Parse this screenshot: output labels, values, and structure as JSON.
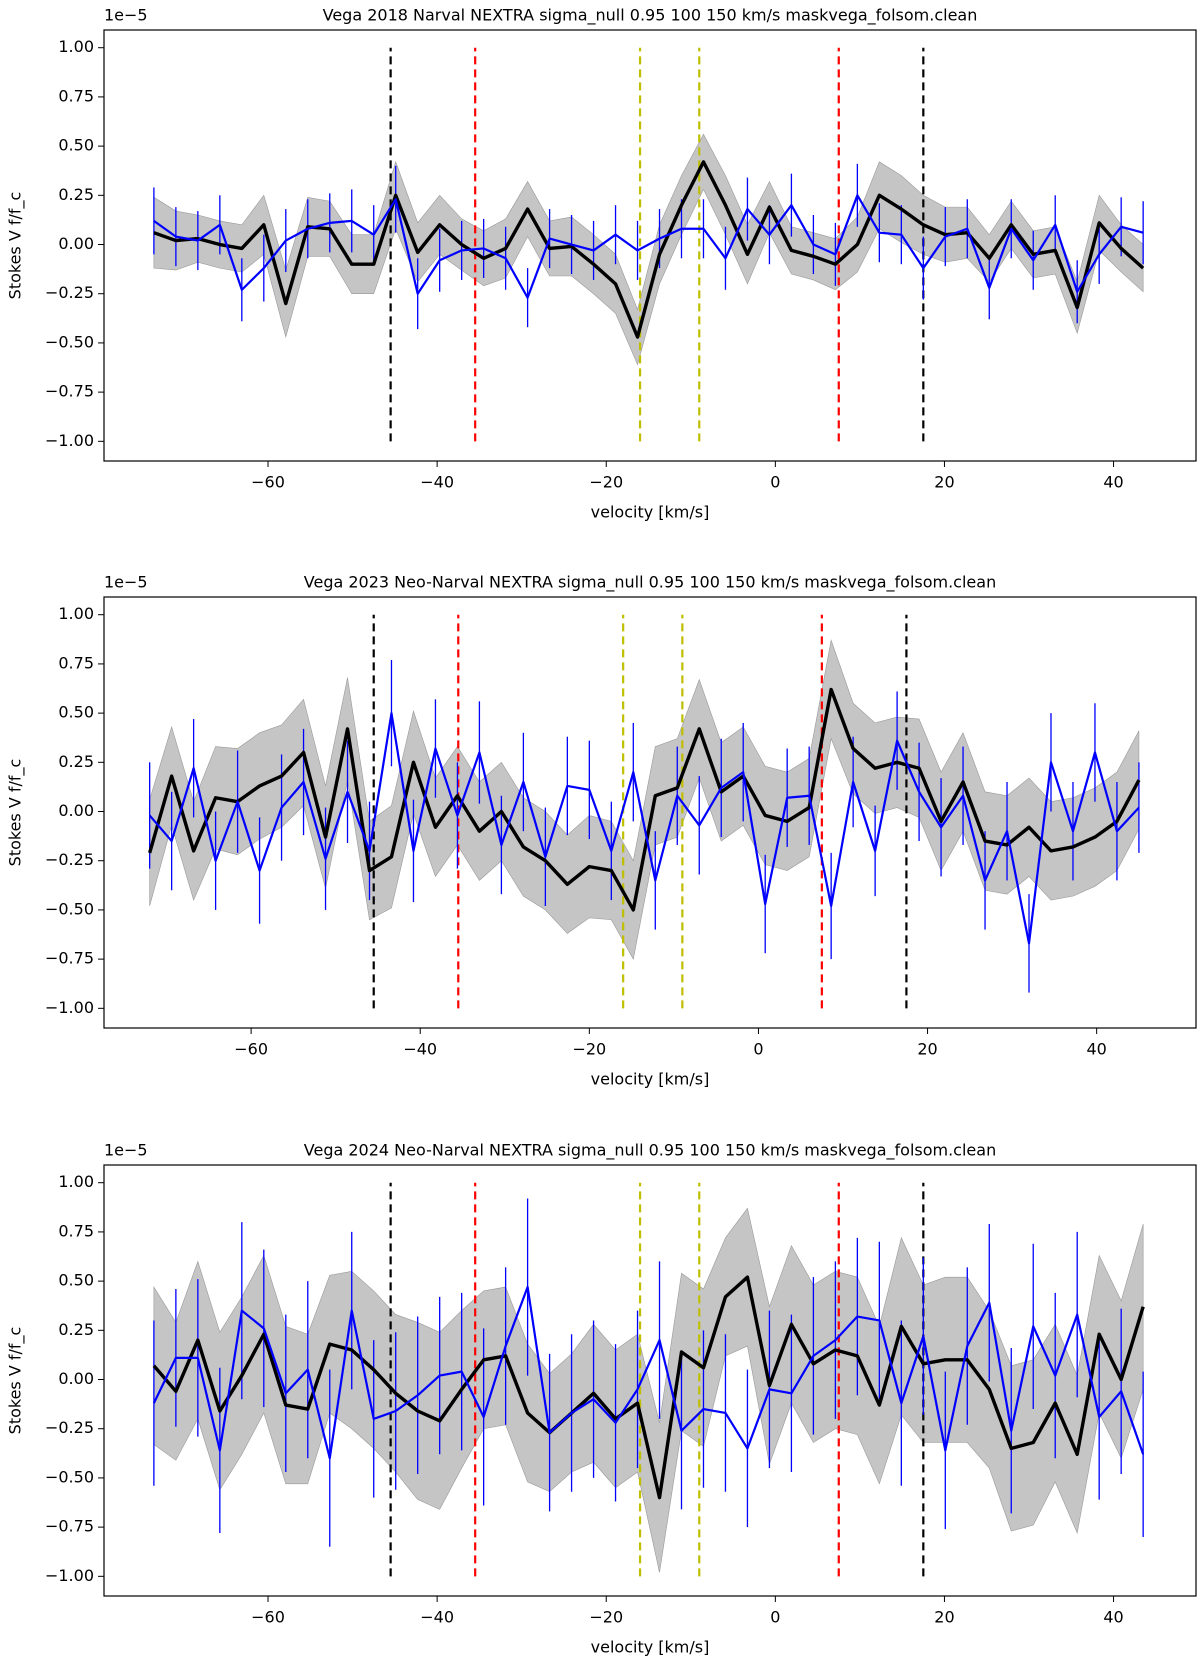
{
  "chart_data": [
    {
      "type": "line",
      "title": "Vega  2018  Narval  NEXTRA  sigma_null  0.95  100  150 km/s maskvega_folsom.clean",
      "x_label": "velocity [km/s]",
      "y_label": "Stokes V f/f_c",
      "offset_label": "1e−5",
      "xlim": [
        -79.4,
        49.75
      ],
      "ylim": [
        -1.1,
        1.09
      ],
      "xticks": [
        {
          "value": -60,
          "label": "−60"
        },
        {
          "value": -40,
          "label": "−40"
        },
        {
          "value": -20,
          "label": "−20"
        },
        0,
        20,
        40
      ],
      "yticks": [
        {
          "value": -1,
          "label": "−1.00"
        },
        {
          "value": -0.75,
          "label": "−0.75"
        },
        {
          "value": -0.5,
          "label": "−0.50"
        },
        {
          "value": -0.25,
          "label": "−0.25"
        },
        {
          "value": 0,
          "label": "0.00"
        },
        {
          "value": 0.25,
          "label": "0.25"
        },
        {
          "value": 0.5,
          "label": "0.50"
        },
        {
          "value": 0.75,
          "label": "0.75"
        },
        {
          "value": 1,
          "label": "1.00"
        }
      ],
      "x": [
        -73.5,
        -70.9,
        -68.3,
        -65.7,
        -63.1,
        -60.5,
        -57.9,
        -55.3,
        -52.7,
        -50.1,
        -47.5,
        -44.9,
        -42.3,
        -39.7,
        -37.1,
        -34.5,
        -31.9,
        -29.3,
        -26.7,
        -24.1,
        -21.5,
        -18.9,
        -16.3,
        -13.7,
        -11.1,
        -8.5,
        -5.9,
        -3.3,
        -0.7,
        1.9,
        4.5,
        7.1,
        9.7,
        12.3,
        14.9,
        17.5,
        20.1,
        22.7,
        25.3,
        27.9,
        30.5,
        33.1,
        35.7,
        38.3,
        40.9,
        43.5
      ],
      "series": [
        {
          "color": "#000000",
          "band_color": "#bbbbbb",
          "style": "band",
          "values": [
            0.06,
            0.02,
            0.03,
            0.0,
            -0.02,
            0.1,
            -0.3,
            0.09,
            0.08,
            -0.1,
            -0.1,
            0.25,
            -0.04,
            0.1,
            0.0,
            -0.07,
            -0.02,
            0.18,
            -0.02,
            -0.01,
            -0.1,
            -0.2,
            -0.47,
            -0.05,
            0.2,
            0.42,
            0.2,
            -0.05,
            0.19,
            -0.03,
            -0.06,
            -0.1,
            0.0,
            0.25,
            0.18,
            0.1,
            0.05,
            0.06,
            -0.07,
            0.1,
            -0.05,
            -0.03,
            -0.32,
            0.11,
            -0.02,
            -0.12
          ],
          "errors": [
            0.18,
            0.15,
            0.12,
            0.12,
            0.12,
            0.15,
            0.17,
            0.15,
            0.14,
            0.15,
            0.15,
            0.17,
            0.15,
            0.15,
            0.13,
            0.14,
            0.15,
            0.14,
            0.14,
            0.15,
            0.15,
            0.15,
            0.14,
            0.15,
            0.15,
            0.14,
            0.15,
            0.15,
            0.13,
            0.12,
            0.12,
            0.13,
            0.14,
            0.17,
            0.17,
            0.15,
            0.14,
            0.13,
            0.12,
            0.12,
            0.12,
            0.12,
            0.13,
            0.14,
            0.12,
            0.12
          ]
        },
        {
          "color": "#0000ff",
          "style": "errorbar",
          "values": [
            0.12,
            0.04,
            0.02,
            0.1,
            -0.23,
            -0.12,
            0.02,
            0.08,
            0.11,
            0.12,
            0.05,
            0.23,
            -0.25,
            -0.08,
            -0.03,
            -0.02,
            -0.07,
            -0.27,
            0.03,
            0.0,
            -0.03,
            0.05,
            -0.03,
            0.03,
            0.08,
            0.08,
            -0.07,
            0.18,
            0.05,
            0.2,
            0.0,
            -0.05,
            0.25,
            0.06,
            0.05,
            -0.12,
            0.04,
            0.08,
            -0.22,
            0.08,
            -0.08,
            0.1,
            -0.24,
            -0.05,
            0.09,
            0.06
          ],
          "errors": [
            0.17,
            0.15,
            0.15,
            0.15,
            0.16,
            0.17,
            0.16,
            0.15,
            0.15,
            0.16,
            0.15,
            0.17,
            0.18,
            0.16,
            0.15,
            0.15,
            0.16,
            0.15,
            0.15,
            0.15,
            0.15,
            0.15,
            0.15,
            0.15,
            0.15,
            0.15,
            0.16,
            0.16,
            0.15,
            0.16,
            0.15,
            0.16,
            0.16,
            0.15,
            0.15,
            0.16,
            0.15,
            0.15,
            0.16,
            0.15,
            0.15,
            0.15,
            0.16,
            0.15,
            0.15,
            0.16
          ]
        }
      ],
      "vlines": {
        "x": [
          -45.5,
          -35.5,
          -16,
          -9,
          7.5,
          17.5
        ],
        "colors": [
          "#000000",
          "#ff0000",
          "#bfbf00",
          "#bfbf00",
          "#ff0000",
          "#000000"
        ],
        "y_range": [
          -1,
          1
        ]
      }
    },
    {
      "type": "line",
      "title": "Vega  2023  Neo-Narval  NEXTRA  sigma_null  0.95  100  150 km/s maskvega_folsom.clean",
      "x_label": "velocity [km/s]",
      "y_label": "Stokes V f/f_c",
      "offset_label": "1e−5",
      "xlim": [
        -77.4,
        51.75
      ],
      "ylim": [
        -1.1,
        1.09
      ],
      "xticks": [
        {
          "value": -60,
          "label": "−60"
        },
        {
          "value": -40,
          "label": "−40"
        },
        {
          "value": -20,
          "label": "−20"
        },
        0,
        20,
        40
      ],
      "yticks": [
        {
          "value": -1,
          "label": "−1.00"
        },
        {
          "value": -0.75,
          "label": "−0.75"
        },
        {
          "value": -0.5,
          "label": "−0.50"
        },
        {
          "value": -0.25,
          "label": "−0.25"
        },
        {
          "value": 0,
          "label": "0.00"
        },
        {
          "value": 0.25,
          "label": "0.25"
        },
        {
          "value": 0.5,
          "label": "0.50"
        },
        {
          "value": 0.75,
          "label": "0.75"
        },
        {
          "value": 1,
          "label": "1.00"
        }
      ],
      "x": [
        -72,
        -69.4,
        -66.8,
        -64.2,
        -61.6,
        -59,
        -56.4,
        -53.8,
        -51.2,
        -48.6,
        -46,
        -43.4,
        -40.8,
        -38.2,
        -35.6,
        -33,
        -30.4,
        -27.8,
        -25.2,
        -22.6,
        -20,
        -17.4,
        -14.8,
        -12.2,
        -9.6,
        -7,
        -4.4,
        -1.8,
        0.8,
        3.4,
        6,
        8.6,
        11.2,
        13.8,
        16.4,
        19,
        21.6,
        24.2,
        26.8,
        29.4,
        32,
        34.6,
        37.2,
        39.8,
        42.4,
        45
      ],
      "series": [
        {
          "color": "#000000",
          "band_color": "#bbbbbb",
          "style": "band",
          "values": [
            -0.21,
            0.18,
            -0.2,
            0.07,
            0.05,
            0.13,
            0.18,
            0.3,
            -0.13,
            0.42,
            -0.3,
            -0.23,
            0.25,
            -0.08,
            0.08,
            -0.1,
            0.0,
            -0.18,
            -0.25,
            -0.37,
            -0.28,
            -0.3,
            -0.5,
            0.08,
            0.12,
            0.42,
            0.1,
            0.18,
            -0.02,
            -0.05,
            0.02,
            0.62,
            0.32,
            0.22,
            0.25,
            0.22,
            -0.05,
            0.15,
            -0.15,
            -0.17,
            -0.08,
            -0.2,
            -0.18,
            -0.13,
            -0.05,
            0.16
          ],
          "errors": [
            0.27,
            0.25,
            0.25,
            0.26,
            0.27,
            0.27,
            0.26,
            0.27,
            0.26,
            0.26,
            0.25,
            0.26,
            0.26,
            0.25,
            0.25,
            0.25,
            0.25,
            0.25,
            0.25,
            0.25,
            0.26,
            0.25,
            0.25,
            0.25,
            0.25,
            0.25,
            0.25,
            0.25,
            0.25,
            0.25,
            0.25,
            0.25,
            0.23,
            0.23,
            0.23,
            0.25,
            0.25,
            0.25,
            0.25,
            0.25,
            0.25,
            0.25,
            0.25,
            0.25,
            0.25,
            0.25
          ]
        },
        {
          "color": "#0000ff",
          "style": "errorbar",
          "values": [
            -0.02,
            -0.15,
            0.22,
            -0.25,
            0.05,
            -0.3,
            0.02,
            0.15,
            -0.24,
            0.1,
            -0.2,
            0.5,
            -0.2,
            0.32,
            -0.02,
            0.3,
            -0.17,
            0.15,
            -0.23,
            0.13,
            0.11,
            -0.2,
            0.2,
            -0.35,
            0.08,
            -0.07,
            0.12,
            0.2,
            -0.47,
            0.07,
            0.08,
            -0.48,
            0.15,
            -0.2,
            0.36,
            0.1,
            -0.08,
            0.08,
            -0.35,
            -0.1,
            -0.67,
            0.25,
            -0.1,
            0.3,
            -0.1,
            0.02
          ],
          "errors": [
            0.27,
            0.25,
            0.25,
            0.25,
            0.26,
            0.27,
            0.27,
            0.27,
            0.26,
            0.26,
            0.25,
            0.27,
            0.26,
            0.25,
            0.27,
            0.26,
            0.25,
            0.25,
            0.25,
            0.25,
            0.25,
            0.25,
            0.25,
            0.25,
            0.25,
            0.25,
            0.25,
            0.25,
            0.25,
            0.25,
            0.25,
            0.27,
            0.23,
            0.23,
            0.25,
            0.25,
            0.25,
            0.25,
            0.25,
            0.25,
            0.25,
            0.25,
            0.25,
            0.25,
            0.25,
            0.23
          ]
        }
      ],
      "vlines": {
        "x": [
          -45.5,
          -35.5,
          -16,
          -9,
          7.5,
          17.5
        ],
        "colors": [
          "#000000",
          "#ff0000",
          "#bfbf00",
          "#bfbf00",
          "#ff0000",
          "#000000"
        ],
        "y_range": [
          -1,
          1
        ]
      }
    },
    {
      "type": "line",
      "title": "Vega  2024  Neo-Narval  NEXTRA  sigma_null  0.95  100  150 km/s maskvega_folsom.clean",
      "x_label": "velocity [km/s]",
      "y_label": "Stokes V f/f_c",
      "offset_label": "1e−5",
      "xlim": [
        -79.4,
        49.75
      ],
      "ylim": [
        -1.1,
        1.09
      ],
      "xticks": [
        {
          "value": -60,
          "label": "−60"
        },
        {
          "value": -40,
          "label": "−40"
        },
        {
          "value": -20,
          "label": "−20"
        },
        0,
        20,
        40
      ],
      "yticks": [
        {
          "value": -1,
          "label": "−1.00"
        },
        {
          "value": -0.75,
          "label": "−0.75"
        },
        {
          "value": -0.5,
          "label": "−0.50"
        },
        {
          "value": -0.25,
          "label": "−0.25"
        },
        {
          "value": 0,
          "label": "0.00"
        },
        {
          "value": 0.25,
          "label": "0.25"
        },
        {
          "value": 0.5,
          "label": "0.50"
        },
        {
          "value": 0.75,
          "label": "0.75"
        },
        {
          "value": 1,
          "label": "1.00"
        }
      ],
      "x": [
        -73.5,
        -70.9,
        -68.3,
        -65.7,
        -63.1,
        -60.5,
        -57.9,
        -55.3,
        -52.7,
        -50.1,
        -47.5,
        -44.9,
        -42.3,
        -39.7,
        -37.1,
        -34.5,
        -31.9,
        -29.3,
        -26.7,
        -24.1,
        -21.5,
        -18.9,
        -16.3,
        -13.7,
        -11.1,
        -8.5,
        -5.9,
        -3.3,
        -0.7,
        1.9,
        4.5,
        7.1,
        9.7,
        12.3,
        14.9,
        17.5,
        20.1,
        22.7,
        25.3,
        27.9,
        30.5,
        33.1,
        35.7,
        38.3,
        40.9,
        43.5
      ],
      "series": [
        {
          "color": "#000000",
          "band_color": "#bbbbbb",
          "style": "band",
          "values": [
            0.07,
            -0.06,
            0.2,
            -0.16,
            0.02,
            0.23,
            -0.13,
            -0.15,
            0.18,
            0.15,
            0.05,
            -0.07,
            -0.16,
            -0.21,
            -0.05,
            0.1,
            0.12,
            -0.17,
            -0.27,
            -0.17,
            -0.07,
            -0.2,
            -0.12,
            -0.6,
            0.14,
            0.06,
            0.42,
            0.52,
            -0.03,
            0.28,
            0.08,
            0.15,
            0.12,
            -0.13,
            0.27,
            0.08,
            0.1,
            0.1,
            -0.05,
            -0.35,
            -0.32,
            -0.12,
            -0.38,
            0.23,
            0.0,
            0.37
          ],
          "errors": [
            0.4,
            0.35,
            0.4,
            0.4,
            0.4,
            0.4,
            0.4,
            0.38,
            0.35,
            0.4,
            0.4,
            0.4,
            0.45,
            0.45,
            0.4,
            0.35,
            0.35,
            0.35,
            0.3,
            0.3,
            0.35,
            0.35,
            0.35,
            0.38,
            0.4,
            0.4,
            0.3,
            0.35,
            0.4,
            0.4,
            0.4,
            0.4,
            0.4,
            0.4,
            0.45,
            0.4,
            0.42,
            0.42,
            0.4,
            0.42,
            0.42,
            0.4,
            0.4,
            0.4,
            0.4,
            0.42
          ]
        },
        {
          "color": "#0000ff",
          "style": "errorbar",
          "values": [
            -0.12,
            0.11,
            0.11,
            -0.36,
            0.35,
            0.26,
            -0.07,
            0.05,
            -0.4,
            0.35,
            -0.2,
            -0.16,
            -0.08,
            0.02,
            0.04,
            -0.19,
            0.17,
            0.47,
            -0.27,
            -0.17,
            -0.1,
            -0.22,
            -0.05,
            0.2,
            -0.26,
            -0.15,
            -0.17,
            -0.35,
            -0.05,
            -0.07,
            0.12,
            0.2,
            0.32,
            0.3,
            -0.12,
            0.22,
            -0.36,
            0.17,
            0.39,
            -0.26,
            0.27,
            0.02,
            0.33,
            -0.19,
            -0.06,
            -0.38
          ],
          "errors": [
            0.42,
            0.35,
            0.4,
            0.42,
            0.45,
            0.4,
            0.4,
            0.45,
            0.45,
            0.4,
            0.4,
            0.4,
            0.4,
            0.4,
            0.4,
            0.45,
            0.4,
            0.45,
            0.4,
            0.4,
            0.4,
            0.4,
            0.4,
            0.4,
            0.4,
            0.4,
            0.4,
            0.4,
            0.4,
            0.4,
            0.4,
            0.4,
            0.4,
            0.4,
            0.42,
            0.4,
            0.4,
            0.4,
            0.4,
            0.42,
            0.42,
            0.42,
            0.42,
            0.42,
            0.42,
            0.42
          ]
        }
      ],
      "vlines": {
        "x": [
          -45.5,
          -35.5,
          -16,
          -9,
          7.5,
          17.5
        ],
        "colors": [
          "#000000",
          "#ff0000",
          "#bfbf00",
          "#bfbf00",
          "#ff0000",
          "#000000"
        ],
        "y_range": [
          -1,
          1
        ]
      }
    }
  ]
}
